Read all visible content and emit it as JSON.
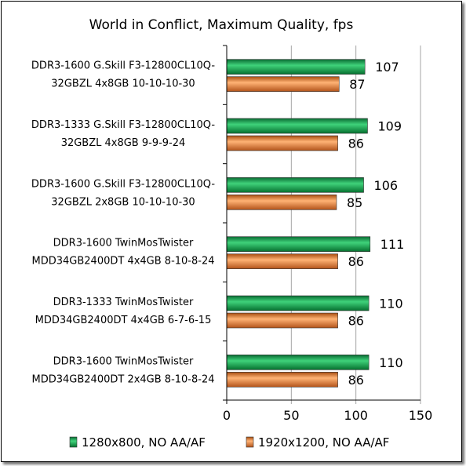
{
  "chart_data": {
    "type": "bar",
    "orientation": "horizontal",
    "title": "World in Conflict, Maximum Quality,  fps",
    "categories": [
      [
        "DDR3-1600 G.Skill F3-12800CL10Q-",
        "32GBZL 4x8GB 10-10-10-30"
      ],
      [
        "DDR3-1333 G.Skill F3-12800CL10Q-",
        "32GBZL 4x8GB 9-9-9-24"
      ],
      [
        "DDR3-1600 G.Skill F3-12800CL10Q-",
        "32GBZL 2x8GB 10-10-10-30"
      ],
      [
        "DDR3-1600 TwinMosTwister",
        "MDD34GB2400DT 4x4GB 8-10-8-24"
      ],
      [
        "DDR3-1333 TwinMosTwister",
        "MDD34GB2400DT 4x4GB 6-7-6-15"
      ],
      [
        "DDR3-1600 TwinMosTwister",
        "MDD34GB2400DT 2x4GB 8-10-8-24"
      ]
    ],
    "series": [
      {
        "name": "1280x800, NO AA/AF",
        "values": [
          107,
          109,
          106,
          111,
          110,
          110
        ],
        "color": "#00a04a"
      },
      {
        "name": "1920x1200, NO AA/AF",
        "values": [
          87,
          86,
          85,
          86,
          86,
          86
        ],
        "color": "#f08a3c"
      }
    ],
    "xlim": [
      0,
      150
    ],
    "xticks": [
      0,
      50,
      100,
      150
    ],
    "grid": true,
    "legend_position": "bottom"
  }
}
